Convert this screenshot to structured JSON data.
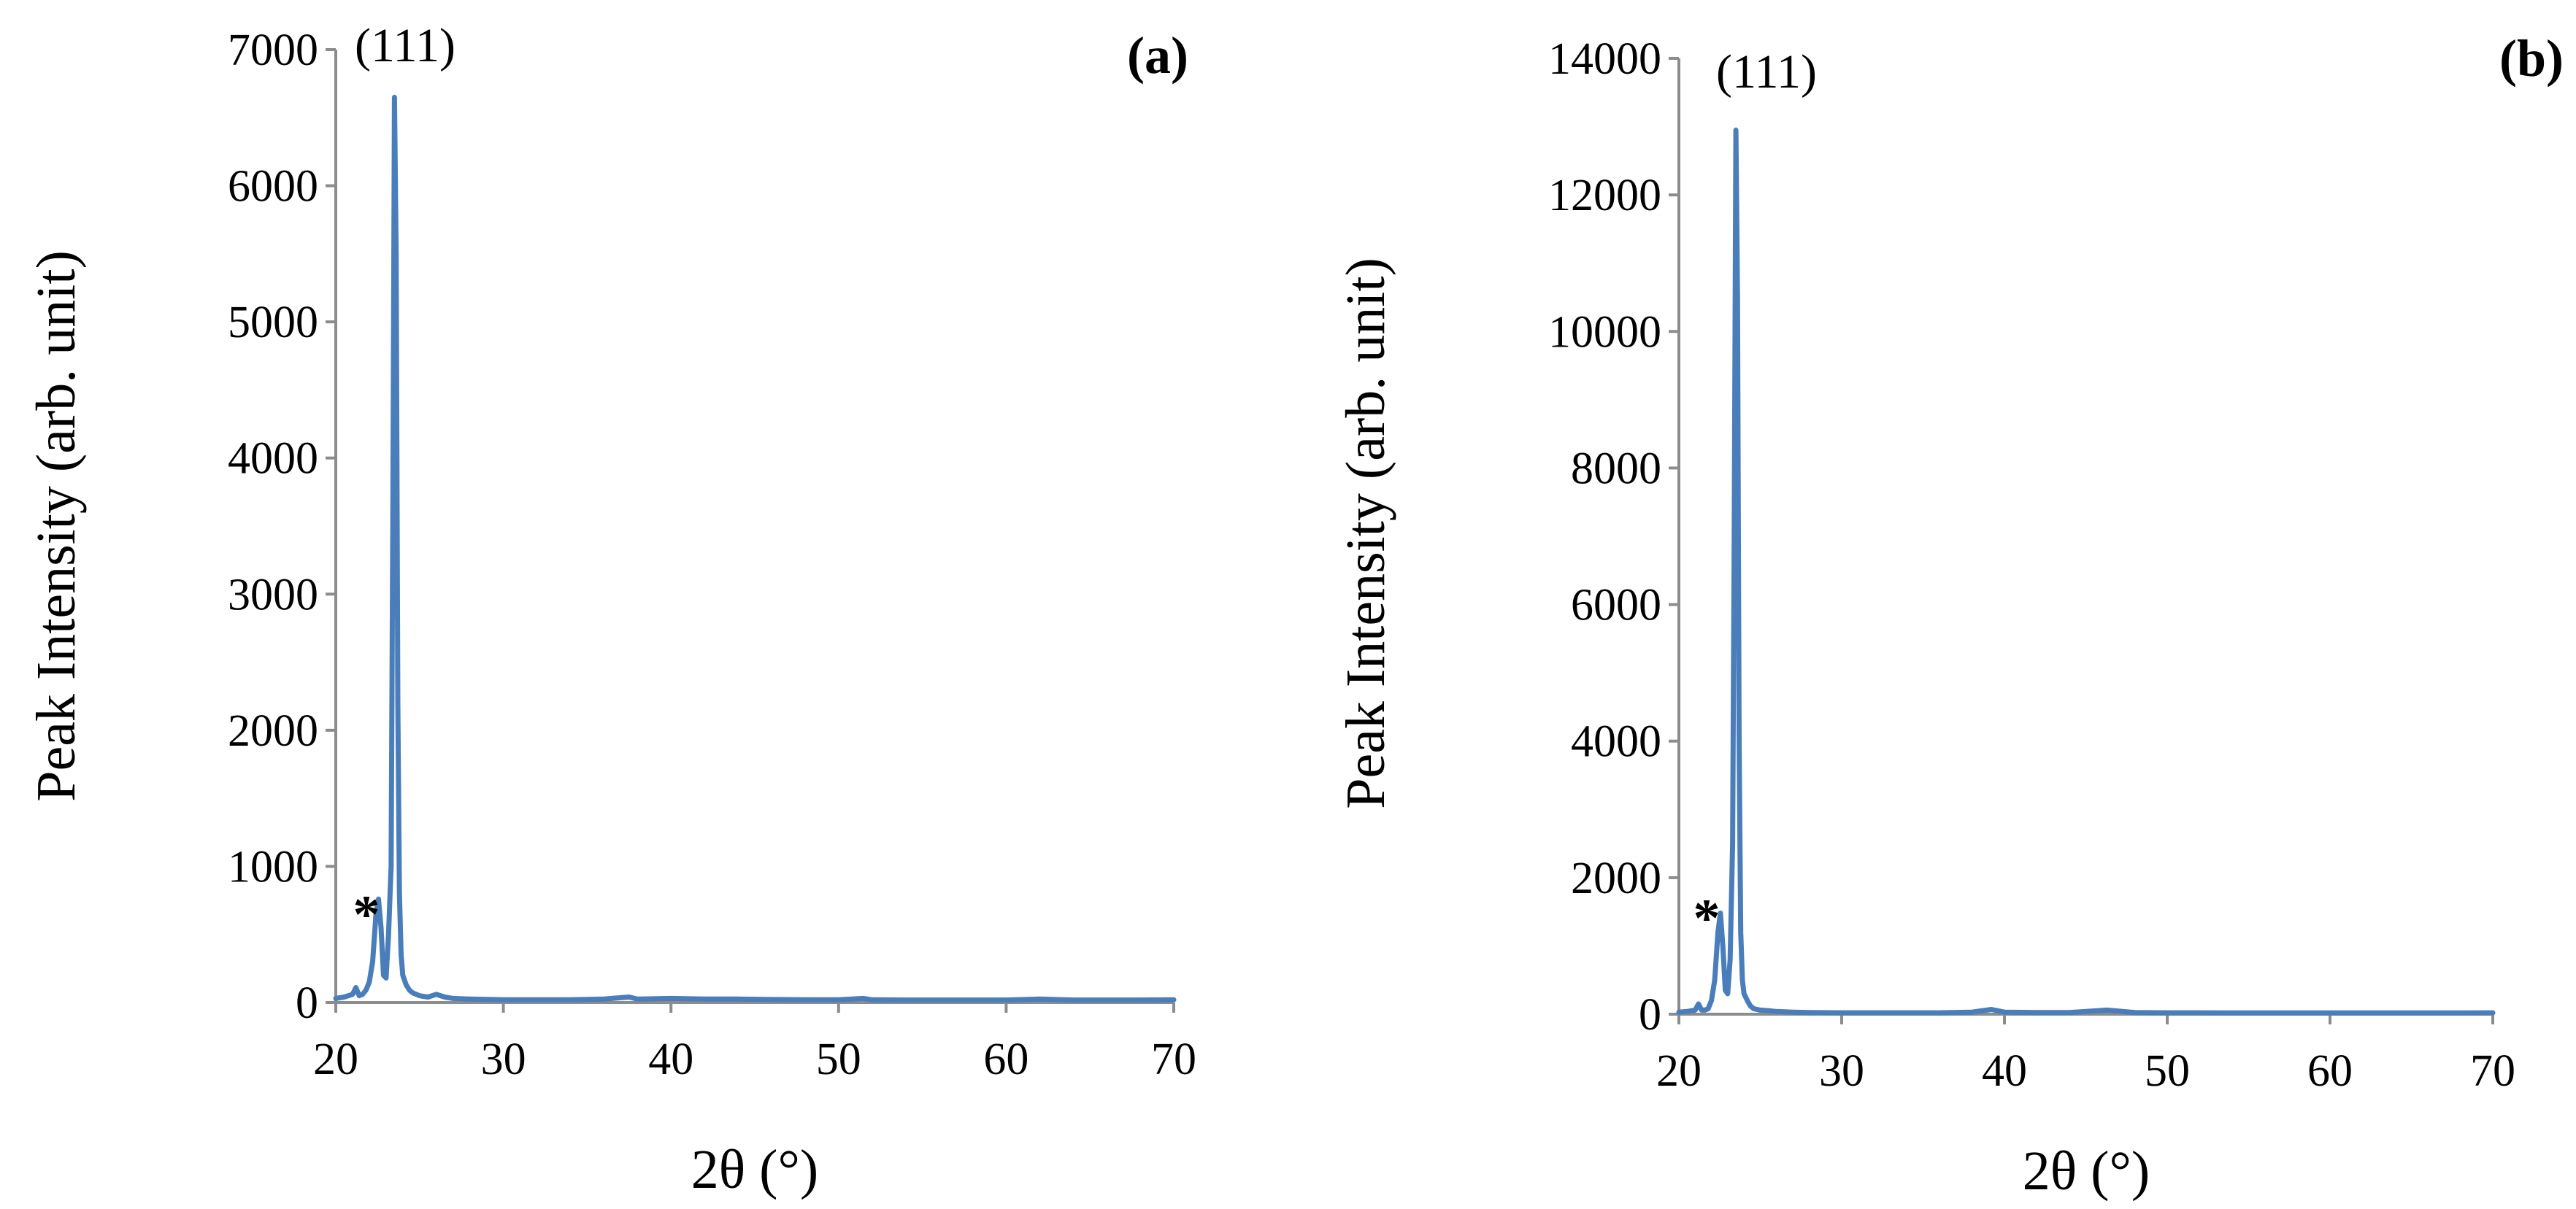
{
  "chart_data": [
    {
      "type": "line",
      "panel_label": "(a)",
      "panel_letter": "a",
      "xlabel": "2θ (°)",
      "ylabel": "Peak Intensity (arb. unit)",
      "xlim": [
        20,
        70
      ],
      "ylim": [
        0,
        7000
      ],
      "xticks": [
        20,
        30,
        40,
        50,
        60,
        70
      ],
      "yticks": [
        0,
        1000,
        2000,
        3000,
        4000,
        5000,
        6000,
        7000
      ],
      "line_color": "#4a7ebb",
      "annotations": [
        {
          "text": "(111)",
          "x": 23.5,
          "y": 7000
        },
        {
          "text": "*",
          "x": 22.6,
          "y": 740
        }
      ],
      "series": [
        {
          "x": [
            20.0,
            20.5,
            21.0,
            21.2,
            21.4,
            21.6,
            21.8,
            22.0,
            22.2,
            22.4,
            22.55,
            22.7,
            22.85,
            23.0,
            23.15,
            23.3,
            23.4,
            23.5,
            23.6,
            23.7,
            23.8,
            23.9,
            24.0,
            24.2,
            24.4,
            24.6,
            25.0,
            25.5,
            26.0,
            26.5,
            27.0,
            28.0,
            30.0,
            32.0,
            34.0,
            36.0,
            37.5,
            38.0,
            40.0,
            42.0,
            44.0,
            46.0,
            48.0,
            50.0,
            51.5,
            52.0,
            54.0,
            56.0,
            58.0,
            60.0,
            62.0,
            64.0,
            66.0,
            68.0,
            70.0
          ],
          "y": [
            30,
            40,
            60,
            110,
            50,
            60,
            90,
            150,
            300,
            650,
            760,
            550,
            200,
            180,
            500,
            1000,
            3500,
            6650,
            5500,
            2200,
            800,
            350,
            200,
            130,
            90,
            70,
            50,
            40,
            60,
            40,
            30,
            25,
            20,
            20,
            20,
            25,
            40,
            25,
            30,
            25,
            25,
            22,
            20,
            20,
            30,
            20,
            18,
            18,
            18,
            18,
            25,
            18,
            18,
            18,
            20
          ]
        }
      ]
    },
    {
      "type": "line",
      "panel_label": "(b)",
      "panel_letter": "b",
      "xlabel": "2θ (°)",
      "ylabel": "Peak Intensity (arb. unit)",
      "xlim": [
        20,
        70
      ],
      "ylim": [
        0,
        14000
      ],
      "xticks": [
        20,
        30,
        40,
        50,
        60,
        70
      ],
      "yticks": [
        0,
        2000,
        4000,
        6000,
        8000,
        10000,
        12000,
        14000
      ],
      "line_color": "#4a7ebb",
      "annotations": [
        {
          "text": "(111)",
          "x": 23.5,
          "y": 14000
        },
        {
          "text": "*",
          "x": 22.6,
          "y": 1500
        }
      ],
      "series": [
        {
          "x": [
            20.0,
            20.5,
            21.0,
            21.2,
            21.4,
            21.6,
            21.8,
            22.0,
            22.2,
            22.4,
            22.55,
            22.7,
            22.85,
            23.0,
            23.15,
            23.3,
            23.4,
            23.5,
            23.6,
            23.7,
            23.8,
            23.9,
            24.0,
            24.2,
            24.4,
            24.6,
            25.0,
            25.5,
            26.0,
            27.0,
            28.0,
            30.0,
            32.0,
            34.0,
            36.0,
            38.0,
            39.2,
            40.0,
            42.0,
            44.0,
            46.3,
            48.0,
            50.0,
            52.0,
            54.0,
            56.0,
            58.0,
            60.0,
            62.0,
            64.0,
            66.0,
            68.0,
            70.0
          ],
          "y": [
            30,
            40,
            60,
            150,
            60,
            60,
            80,
            200,
            500,
            1200,
            1480,
            1000,
            350,
            300,
            800,
            2500,
            7000,
            12950,
            10500,
            4000,
            1200,
            500,
            300,
            200,
            120,
            80,
            60,
            50,
            40,
            30,
            25,
            20,
            20,
            20,
            20,
            30,
            70,
            30,
            25,
            25,
            60,
            25,
            20,
            20,
            18,
            18,
            18,
            18,
            18,
            18,
            18,
            18,
            20
          ]
        }
      ]
    }
  ]
}
